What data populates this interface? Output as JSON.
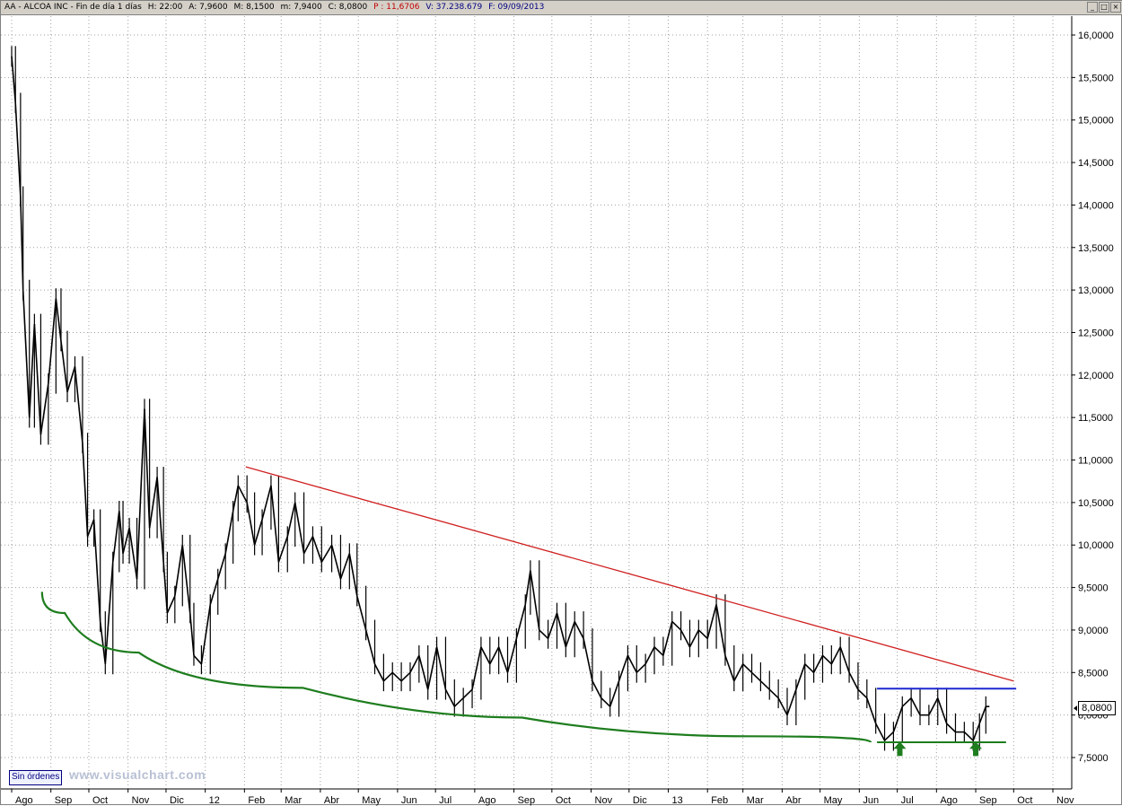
{
  "header": {
    "symbol": "AA - ALCOA INC - Fin de día 1 días",
    "hour": "H: 22:00",
    "open": "A: 7,9600",
    "high": "M: 8,1500",
    "low": "m: 7,9400",
    "close": "C: 8,0800",
    "p": "P : 11,6706",
    "volume": "V: 37.238.679",
    "date": "F: 09/09/2013"
  },
  "window_buttons": [
    "_",
    "□",
    "×"
  ],
  "footer": {
    "orders_label": "Sin órdenes",
    "watermark": "www.visualchart.com"
  },
  "last_price_label": "8,0800",
  "colors": {
    "candles": "#000000",
    "grid": "#a0a0a0",
    "resistance_trend": "#d02020",
    "support_curve": "#1e7d1e",
    "range_top": "#1e2ad0",
    "range_bottom": "#1e7d1e",
    "arrows": "#1e7d1e"
  },
  "chart_data": {
    "type": "line",
    "title": "AA - ALCOA INC - Fin de día 1 días",
    "xlabel": "",
    "ylabel": "",
    "grid": true,
    "ylim": [
      7.2,
      16.2
    ],
    "y_ticks": [
      "16,0000",
      "15,5000",
      "15,0000",
      "14,5000",
      "14,0000",
      "13,5000",
      "13,0000",
      "12,5000",
      "12,0000",
      "11,5000",
      "11,0000",
      "10,5000",
      "10,0000",
      "9,5000",
      "9,0000",
      "8,5000",
      "8,0000",
      "7,5000"
    ],
    "y_tick_values": [
      16.0,
      15.5,
      15.0,
      14.5,
      14.0,
      13.5,
      13.0,
      12.5,
      12.0,
      11.5,
      11.0,
      10.5,
      10.0,
      9.5,
      9.0,
      8.5,
      8.0,
      7.5
    ],
    "x_ticks": [
      "Ago",
      "Sep",
      "Oct",
      "Nov",
      "Dic",
      "12",
      "Feb",
      "Mar",
      "Abr",
      "May",
      "Jun",
      "Jul",
      "Ago",
      "Sep",
      "Oct",
      "Nov",
      "Dic",
      "13",
      "Feb",
      "Mar",
      "Abr",
      "May",
      "Jun",
      "Jul",
      "Ago",
      "Sep",
      "Oct",
      "Nov"
    ],
    "x_tick_dates": [
      "2011-08-01",
      "2011-09-01",
      "2011-10-01",
      "2011-11-01",
      "2011-12-01",
      "2012-01-01",
      "2012-02-01",
      "2012-03-01",
      "2012-04-01",
      "2012-05-01",
      "2012-06-01",
      "2012-07-01",
      "2012-08-01",
      "2012-09-01",
      "2012-10-01",
      "2012-11-01",
      "2012-12-01",
      "2013-01-01",
      "2013-02-01",
      "2013-03-01",
      "2013-04-01",
      "2013-05-01",
      "2013-06-01",
      "2013-07-01",
      "2013-08-01",
      "2013-09-01",
      "2013-10-01",
      "2013-11-01"
    ],
    "series": [
      {
        "x": [
          "2011-08-01",
          "2011-08-04",
          "2011-08-08",
          "2011-08-10",
          "2011-08-15",
          "2011-08-19",
          "2011-08-24",
          "2011-08-30",
          "2011-09-05",
          "2011-09-09",
          "2011-09-14",
          "2011-09-20",
          "2011-09-26",
          "2011-09-30",
          "2011-10-05",
          "2011-10-10",
          "2011-10-14",
          "2011-10-20",
          "2011-10-25",
          "2011-10-28",
          "2011-11-02",
          "2011-11-08",
          "2011-11-14",
          "2011-11-18",
          "2011-11-24",
          "2011-11-29",
          "2011-12-02",
          "2011-12-08",
          "2011-12-14",
          "2011-12-20",
          "2011-12-23",
          "2011-12-29",
          "2012-01-05",
          "2012-01-11",
          "2012-01-17",
          "2012-01-23",
          "2012-01-27",
          "2012-02-03",
          "2012-02-09",
          "2012-02-15",
          "2012-02-22",
          "2012-02-28",
          "2012-03-06",
          "2012-03-12",
          "2012-03-19",
          "2012-03-26",
          "2012-04-02",
          "2012-04-10",
          "2012-04-17",
          "2012-04-24",
          "2012-04-30",
          "2012-05-07",
          "2012-05-14",
          "2012-05-21",
          "2012-05-28",
          "2012-06-04",
          "2012-06-11",
          "2012-06-18",
          "2012-06-25",
          "2012-07-02",
          "2012-07-09",
          "2012-07-16",
          "2012-07-23",
          "2012-07-30",
          "2012-08-06",
          "2012-08-13",
          "2012-08-20",
          "2012-08-27",
          "2012-09-03",
          "2012-09-10",
          "2012-09-14",
          "2012-09-21",
          "2012-09-28",
          "2012-10-05",
          "2012-10-12",
          "2012-10-19",
          "2012-10-26",
          "2012-11-02",
          "2012-11-09",
          "2012-11-16",
          "2012-11-23",
          "2012-11-30",
          "2012-12-07",
          "2012-12-14",
          "2012-12-21",
          "2012-12-28",
          "2013-01-04",
          "2013-01-11",
          "2013-01-18",
          "2013-01-25",
          "2013-02-01",
          "2013-02-08",
          "2013-02-15",
          "2013-02-22",
          "2013-03-01",
          "2013-03-08",
          "2013-03-15",
          "2013-03-22",
          "2013-03-29",
          "2013-04-05",
          "2013-04-12",
          "2013-04-19",
          "2013-04-26",
          "2013-05-03",
          "2013-05-10",
          "2013-05-17",
          "2013-05-24",
          "2013-05-31",
          "2013-06-07",
          "2013-06-14",
          "2013-06-21",
          "2013-06-28",
          "2013-07-05",
          "2013-07-12",
          "2013-07-19",
          "2013-07-26",
          "2013-08-02",
          "2013-08-09",
          "2013-08-16",
          "2013-08-23",
          "2013-08-30",
          "2013-09-04",
          "2013-09-09"
        ],
        "y": [
          15.75,
          15.2,
          14.1,
          13.0,
          11.5,
          12.6,
          11.3,
          11.9,
          12.9,
          12.4,
          11.8,
          12.1,
          11.2,
          10.1,
          10.3,
          9.1,
          8.6,
          9.8,
          10.4,
          9.9,
          10.2,
          9.6,
          11.6,
          10.2,
          10.8,
          9.8,
          9.2,
          9.4,
          10.0,
          9.2,
          8.7,
          8.6,
          9.3,
          9.6,
          9.9,
          10.4,
          10.7,
          10.5,
          10.0,
          10.3,
          10.7,
          9.8,
          10.1,
          10.5,
          9.9,
          10.1,
          9.8,
          10.0,
          9.6,
          9.9,
          9.4,
          9.0,
          8.6,
          8.4,
          8.5,
          8.4,
          8.5,
          8.7,
          8.3,
          8.8,
          8.3,
          8.1,
          8.2,
          8.3,
          8.8,
          8.6,
          8.8,
          8.5,
          8.9,
          9.3,
          9.7,
          9.0,
          8.9,
          9.2,
          8.8,
          9.1,
          8.9,
          8.4,
          8.2,
          8.1,
          8.4,
          8.7,
          8.5,
          8.6,
          8.8,
          8.7,
          9.1,
          9.0,
          8.8,
          9.0,
          8.9,
          9.3,
          8.7,
          8.4,
          8.6,
          8.5,
          8.4,
          8.3,
          8.2,
          8.0,
          8.3,
          8.6,
          8.5,
          8.7,
          8.6,
          8.8,
          8.5,
          8.3,
          8.2,
          7.9,
          7.7,
          7.8,
          8.1,
          8.2,
          8.0,
          8.0,
          8.2,
          7.9,
          7.8,
          7.8,
          7.7,
          7.9,
          8.1
        ]
      }
    ],
    "annotations": [
      {
        "type": "line",
        "name": "resistance_trend",
        "from": [
          "2012-02-02",
          10.92
        ],
        "to": [
          "2013-10-01",
          8.4
        ]
      },
      {
        "type": "curve",
        "name": "support_curve",
        "points": [
          [
            "2011-08-25",
            9.45
          ],
          [
            "2011-09-30",
            8.95
          ],
          [
            "2011-12-20",
            8.52
          ],
          [
            "2012-06-15",
            8.12
          ],
          [
            "2012-12-01",
            7.82
          ],
          [
            "2013-06-10",
            7.68
          ]
        ]
      },
      {
        "type": "line",
        "name": "range_top",
        "from": [
          "2013-06-15",
          8.31
        ],
        "to": [
          "2013-10-03",
          8.31
        ]
      },
      {
        "type": "line",
        "name": "range_bottom",
        "from": [
          "2013-06-15",
          7.68
        ],
        "to": [
          "2013-09-25",
          7.68
        ]
      },
      {
        "type": "arrow-up",
        "at": [
          "2013-07-03",
          7.55
        ]
      },
      {
        "type": "arrow-up",
        "at": [
          "2013-09-01",
          7.55
        ]
      }
    ]
  }
}
